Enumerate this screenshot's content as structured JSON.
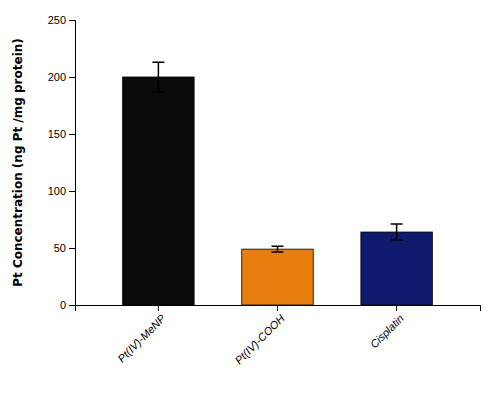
{
  "chart_data": {
    "type": "bar",
    "categories": [
      "Pt(IV)-MeNP",
      "Pt(IV)-COOH",
      "Cisplatin"
    ],
    "values": [
      200.0,
      49.0,
      64.0
    ],
    "errors": [
      13.0,
      2.5,
      7.0
    ],
    "colors": [
      "#0a0a0a",
      "#e87e10",
      "#0d1a6e"
    ],
    "ylabel": "Pt Concentration (ng Pt /mg protein)",
    "ylim": [
      0,
      250
    ],
    "yticks": [
      0,
      50,
      100,
      150,
      200,
      250
    ],
    "grid": false
  }
}
